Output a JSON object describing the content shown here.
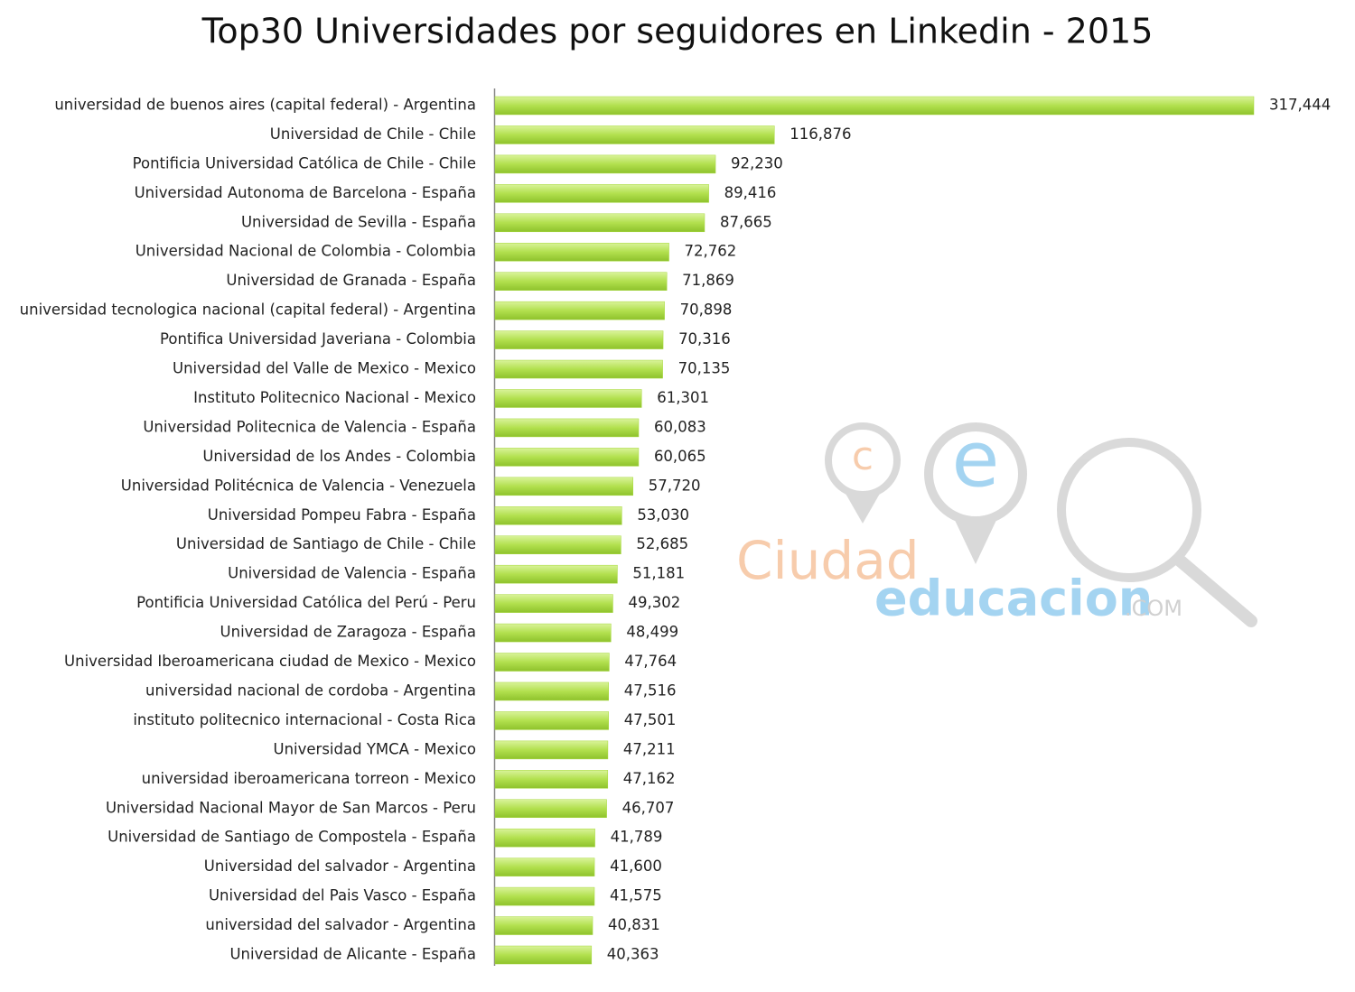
{
  "chart_data": {
    "type": "bar",
    "orientation": "horizontal",
    "title": "Top30 Universidades por seguidores en Linkedin - 2015",
    "color": "#a6d83c",
    "categories": [
      "universidad de buenos aires (capital federal) - Argentina",
      "Universidad de Chile - Chile",
      "Pontificia Universidad Católica de Chile - Chile",
      "Universidad Autonoma de Barcelona - España",
      "Universidad de Sevilla - España",
      "Universidad Nacional de Colombia - Colombia",
      "Universidad de Granada - España",
      "universidad tecnologica nacional (capital federal) - Argentina",
      "Pontifica Universidad Javeriana - Colombia",
      "Universidad del Valle de Mexico - Mexico",
      "Instituto Politecnico Nacional - Mexico",
      "Universidad Politecnica de Valencia - España",
      "Universidad de los Andes - Colombia",
      "Universidad Politécnica de Valencia - Venezuela",
      "Universidad Pompeu Fabra - España",
      "Universidad de Santiago de Chile - Chile",
      "Universidad de Valencia - España",
      "Pontificia Universidad Católica del Perú - Peru",
      "Universidad de Zaragoza - España",
      "Universidad Iberoamericana ciudad de Mexico - Mexico",
      "universidad nacional de cordoba - Argentina",
      "instituto politecnico internacional - Costa Rica",
      "Universidad YMCA - Mexico",
      "universidad iberoamericana torreon - Mexico",
      "Universidad Nacional Mayor de San Marcos - Peru",
      "Universidad de Santiago de Compostela - España",
      "Universidad del salvador - Argentina",
      "Universidad del Pais Vasco - España",
      "universidad del salvador - Argentina",
      "Universidad de Alicante - España"
    ],
    "values": [
      317444,
      116876,
      92230,
      89416,
      87665,
      72762,
      71869,
      70898,
      70316,
      70135,
      61301,
      60083,
      60065,
      57720,
      53030,
      52685,
      51181,
      49302,
      48499,
      47764,
      47516,
      47501,
      47211,
      47162,
      46707,
      41789,
      41600,
      41575,
      40831,
      40363
    ],
    "value_labels": [
      "317,444",
      "116,876",
      "92,230",
      "89,416",
      "87,665",
      "72,762",
      "71,869",
      "70,898",
      "70,316",
      "70,135",
      "61,301",
      "60,083",
      "60,065",
      "57,720",
      "53,030",
      "52,685",
      "51,181",
      "49,302",
      "48,499",
      "47,764",
      "47,516",
      "47,501",
      "47,211",
      "47,162",
      "46,707",
      "41,789",
      "41,600",
      "41,575",
      "40,831",
      "40,363"
    ]
  },
  "watermark": {
    "c": "c",
    "e": "e",
    "ciudad": "Ciudad",
    "educacion": "educacion",
    "com": ".COM"
  }
}
